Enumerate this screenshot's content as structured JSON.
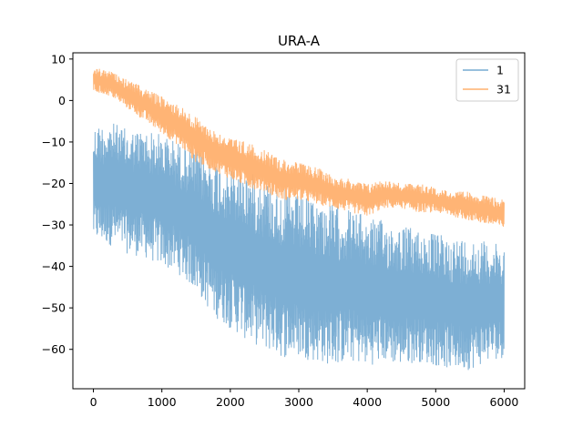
{
  "chart_data": {
    "type": "line",
    "title": "URA-A",
    "xlabel": "",
    "ylabel": "",
    "xlim": [
      -300,
      6300
    ],
    "ylim": [
      -69.5,
      11.5
    ],
    "x_ticks": [
      0,
      1000,
      2000,
      3000,
      4000,
      5000,
      6000
    ],
    "y_ticks": [
      10,
      0,
      -10,
      -20,
      -30,
      -40,
      -50,
      -60
    ],
    "y_tick_labels": [
      "10",
      "0",
      "−10",
      "−20",
      "−30",
      "−40",
      "−50",
      "−60"
    ],
    "x_tick_labels": [
      "0",
      "1000",
      "2000",
      "3000",
      "4000",
      "5000",
      "6000"
    ],
    "grid": false,
    "legend": {
      "placement": "top-right"
    },
    "x_range": [
      0,
      6000
    ],
    "series": [
      {
        "name": "1",
        "color": "#76abd2",
        "x": [
          0,
          250,
          500,
          750,
          1000,
          1250,
          1500,
          1750,
          2000,
          2250,
          2500,
          2750,
          3000,
          3250,
          3500,
          3750,
          4000,
          4250,
          4500,
          4750,
          5000,
          5250,
          5500,
          5750,
          6000
        ],
        "upper": [
          -6,
          -5,
          -7,
          -7,
          -8,
          -10,
          -12,
          -14,
          -16,
          -17,
          -19,
          -21,
          -23,
          -24,
          -25,
          -26,
          -28,
          -29,
          -30,
          -31,
          -32,
          -33,
          -33,
          -34,
          -35
        ],
        "lower": [
          -34,
          -35,
          -37,
          -38,
          -40,
          -42,
          -46,
          -52,
          -55,
          -58,
          -60,
          -62,
          -62,
          -63,
          -64,
          -63,
          -64,
          -63,
          -64,
          -63,
          -64,
          -65,
          -65,
          -63,
          -62
        ]
      },
      {
        "name": "31",
        "color": "#ffb06e",
        "x": [
          0,
          250,
          500,
          750,
          1000,
          1250,
          1500,
          1750,
          2000,
          2250,
          2500,
          2750,
          3000,
          3250,
          3500,
          3750,
          4000,
          4250,
          4500,
          4750,
          5000,
          5250,
          5500,
          5750,
          6000
        ],
        "upper": [
          8,
          7,
          5,
          3,
          1,
          -1,
          -4,
          -7,
          -9,
          -10,
          -12,
          -14,
          -15,
          -16,
          -18,
          -19,
          -20,
          -19,
          -20,
          -20,
          -21,
          -22,
          -22,
          -23,
          -24
        ],
        "lower": [
          2,
          1,
          -2,
          -5,
          -8,
          -11,
          -15,
          -17,
          -19,
          -21,
          -22,
          -24,
          -24,
          -25,
          -26,
          -27,
          -28,
          -26,
          -26,
          -27,
          -27,
          -28,
          -29,
          -30,
          -31
        ]
      }
    ]
  }
}
